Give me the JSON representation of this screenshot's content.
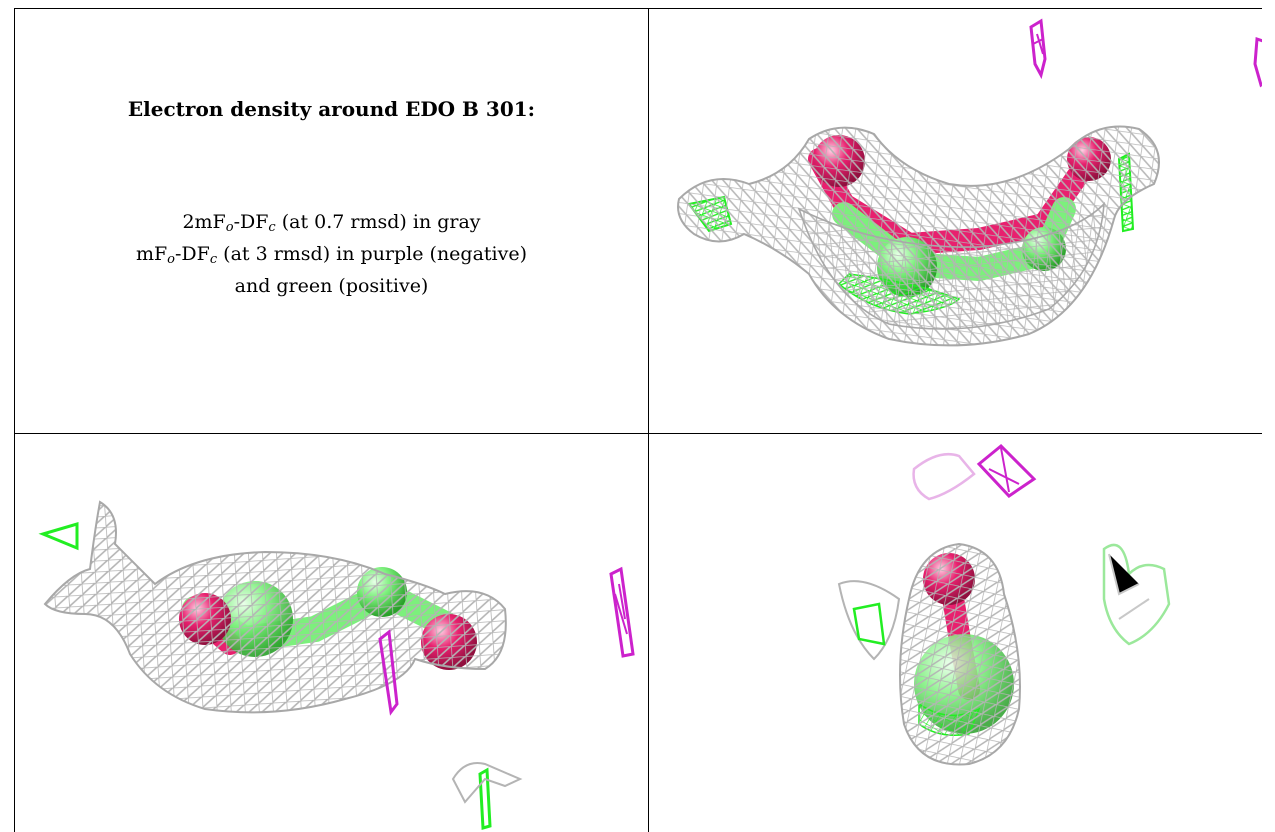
{
  "caption": {
    "title": "Electron density around EDO B 301:",
    "line1": {
      "pre": "2mF",
      "sub1": "o",
      "mid": "-DF",
      "sub2": "c",
      "post": " (at 0.7 rmsd) in gray"
    },
    "line2": {
      "pre": "mF",
      "sub1": "o",
      "mid": "-DF",
      "sub2": "c",
      "post": " (at 3 rmsd) in purple (negative)"
    },
    "line3": "and green (positive)"
  },
  "colors": {
    "mesh_2fofc": "#b4b4b4",
    "mesh_fofc_negative": "#cc22cc",
    "mesh_fofc_positive": "#22ee22",
    "carbon": "#7cf07c",
    "oxygen": "#e8206e"
  },
  "views": [
    {
      "name": "view-top-right",
      "icon": "density-mesh-view"
    },
    {
      "name": "view-bottom-left",
      "icon": "density-mesh-view"
    },
    {
      "name": "view-bottom-right",
      "icon": "density-mesh-view"
    }
  ]
}
